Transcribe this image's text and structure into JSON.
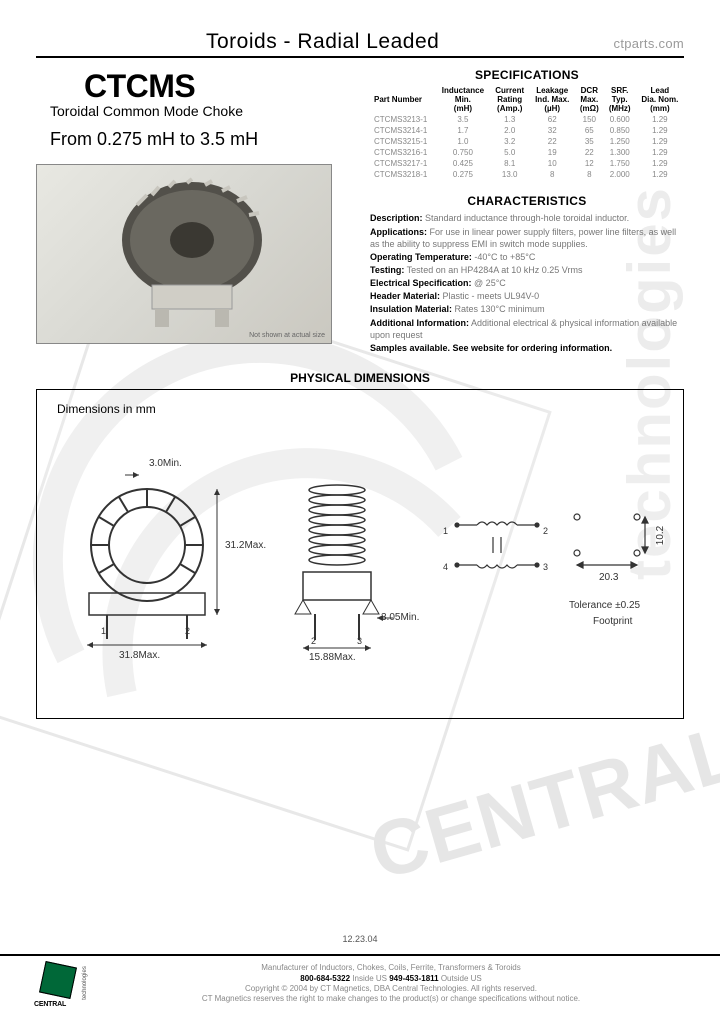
{
  "header": {
    "title": "Toroids - Radial Leaded",
    "url": "ctparts.com"
  },
  "product": {
    "name": "CTCMS",
    "subtitle": "Toroidal Common Mode Choke",
    "range": "From 0.275 mH to 3.5 mH",
    "photo_note": "Not shown at actual size"
  },
  "specifications": {
    "heading": "SPECIFICATIONS",
    "columns": [
      "Part Number",
      "Inductance\nMin.\n(mH)",
      "Current\nRating\n(Amp.)",
      "Leakage\nInd. Max.\n(µH)",
      "DCR\nMax.\n(mΩ)",
      "SRF.\nTyp.\n(MHz)",
      "Lead\nDia. Nom.\n(mm)"
    ],
    "rows": [
      [
        "CTCMS3213-1",
        "3.5",
        "1.3",
        "62",
        "150",
        "0.600",
        "1.29"
      ],
      [
        "CTCMS3214-1",
        "1.7",
        "2.0",
        "32",
        "65",
        "0.850",
        "1.29"
      ],
      [
        "CTCMS3215-1",
        "1.0",
        "3.2",
        "22",
        "35",
        "1.250",
        "1.29"
      ],
      [
        "CTCMS3216-1",
        "0.750",
        "5.0",
        "19",
        "22",
        "1.300",
        "1.29"
      ],
      [
        "CTCMS3217-1",
        "0.425",
        "8.1",
        "10",
        "12",
        "1.750",
        "1.29"
      ],
      [
        "CTCMS3218-1",
        "0.275",
        "13.0",
        "8",
        "8",
        "2.000",
        "1.29"
      ]
    ]
  },
  "characteristics": {
    "heading": "CHARACTERISTICS",
    "lines": [
      {
        "label": "Description:",
        "text": "  Standard inductance through-hole toroidal inductor."
      },
      {
        "label": "Applications:",
        "text": "  For use in linear power supply filters, power line filters, as well as the ability to suppress EMI in switch mode supplies."
      },
      {
        "label": "Operating Temperature:",
        "text": "  -40°C to +85°C"
      },
      {
        "label": "Testing:",
        "text": "  Tested on an HP4284A at 10 kHz 0.25 Vrms"
      },
      {
        "label": "Electrical Specification:",
        "text": "  @ 25°C"
      },
      {
        "label": "Header Material:",
        "text": "  Plastic - meets UL94V-0"
      },
      {
        "label": "Insulation Material:",
        "text": "  Rates 130°C minimum"
      },
      {
        "label": "Additional Information:",
        "text": "  Additional electrical & physical information available upon request"
      },
      {
        "label": "Samples available. See website for ordering information.",
        "text": ""
      }
    ]
  },
  "physical": {
    "heading": "PHYSICAL DIMENSIONS",
    "dim_label": "Dimensions in mm",
    "dims": {
      "d1": "3.0Min.",
      "d2": "31.2Max.",
      "d3": "31.8Max.",
      "d4": "15.88Max.",
      "d5": "3.05Min.",
      "d6": "10.2",
      "d7": "20.3",
      "tol": "Tolerance ±0.25",
      "fp": "Footprint"
    }
  },
  "date": "12.23.04",
  "footer": {
    "logo_text": "CENTRAL",
    "logo_side": "technologies",
    "line1": "Manufacturer of Inductors, Chokes, Coils, Ferrite, Transformers & Toroids",
    "phone1_label": "800-684-5322",
    "phone1_suffix": " Inside US      ",
    "phone2_label": "949-453-1811",
    "phone2_suffix": " Outside US",
    "line3": "Copyright © 2004 by CT Magnetics, DBA Central Technologies. All rights reserved.",
    "line4": "CT Magnetics reserves the right to make changes to the product(s) or change specifications without notice."
  },
  "colors": {
    "text": "#000000",
    "faded": "#888888",
    "green": "#006838",
    "border": "#000000",
    "bg": "#ffffff"
  }
}
